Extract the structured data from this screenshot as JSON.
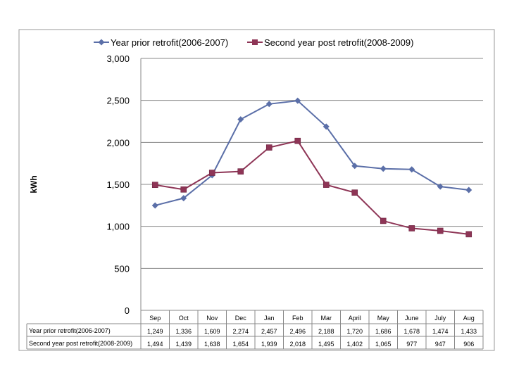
{
  "chart_data": {
    "type": "line",
    "title": "",
    "xlabel": "",
    "ylabel": "kWh",
    "ylim": [
      0,
      3000
    ],
    "yticks": [
      0,
      500,
      1000,
      1500,
      2000,
      2500,
      3000
    ],
    "ytick_labels": [
      "0",
      "500",
      "1,000",
      "1,500",
      "2,000",
      "2,500",
      "3,000"
    ],
    "grid": true,
    "legend_position": "top",
    "categories": [
      "Sep",
      "Oct",
      "Nov",
      "Dec",
      "Jan",
      "Feb",
      "Mar",
      "April",
      "May",
      "June",
      "July",
      "Aug"
    ],
    "series": [
      {
        "name": "Year prior retrofit(2006-2007)",
        "color": "#5b6fa8",
        "marker": "diamond",
        "values": [
          1249,
          1336,
          1609,
          2274,
          2457,
          2496,
          2188,
          1720,
          1686,
          1678,
          1474,
          1433
        ],
        "labels": [
          "1,249",
          "1,336",
          "1,609",
          "2,274",
          "2,457",
          "2,496",
          "2,188",
          "1,720",
          "1,686",
          "1,678",
          "1,474",
          "1,433"
        ]
      },
      {
        "name": "Second year post retrofit(2008-2009)",
        "color": "#8e3556",
        "marker": "square",
        "values": [
          1494,
          1439,
          1638,
          1654,
          1939,
          2018,
          1495,
          1402,
          1065,
          977,
          947,
          906
        ],
        "labels": [
          "1,494",
          "1,439",
          "1,638",
          "1,654",
          "1,939",
          "2,018",
          "1,495",
          "1,402",
          "1,065",
          "977",
          "947",
          "906"
        ]
      }
    ]
  }
}
